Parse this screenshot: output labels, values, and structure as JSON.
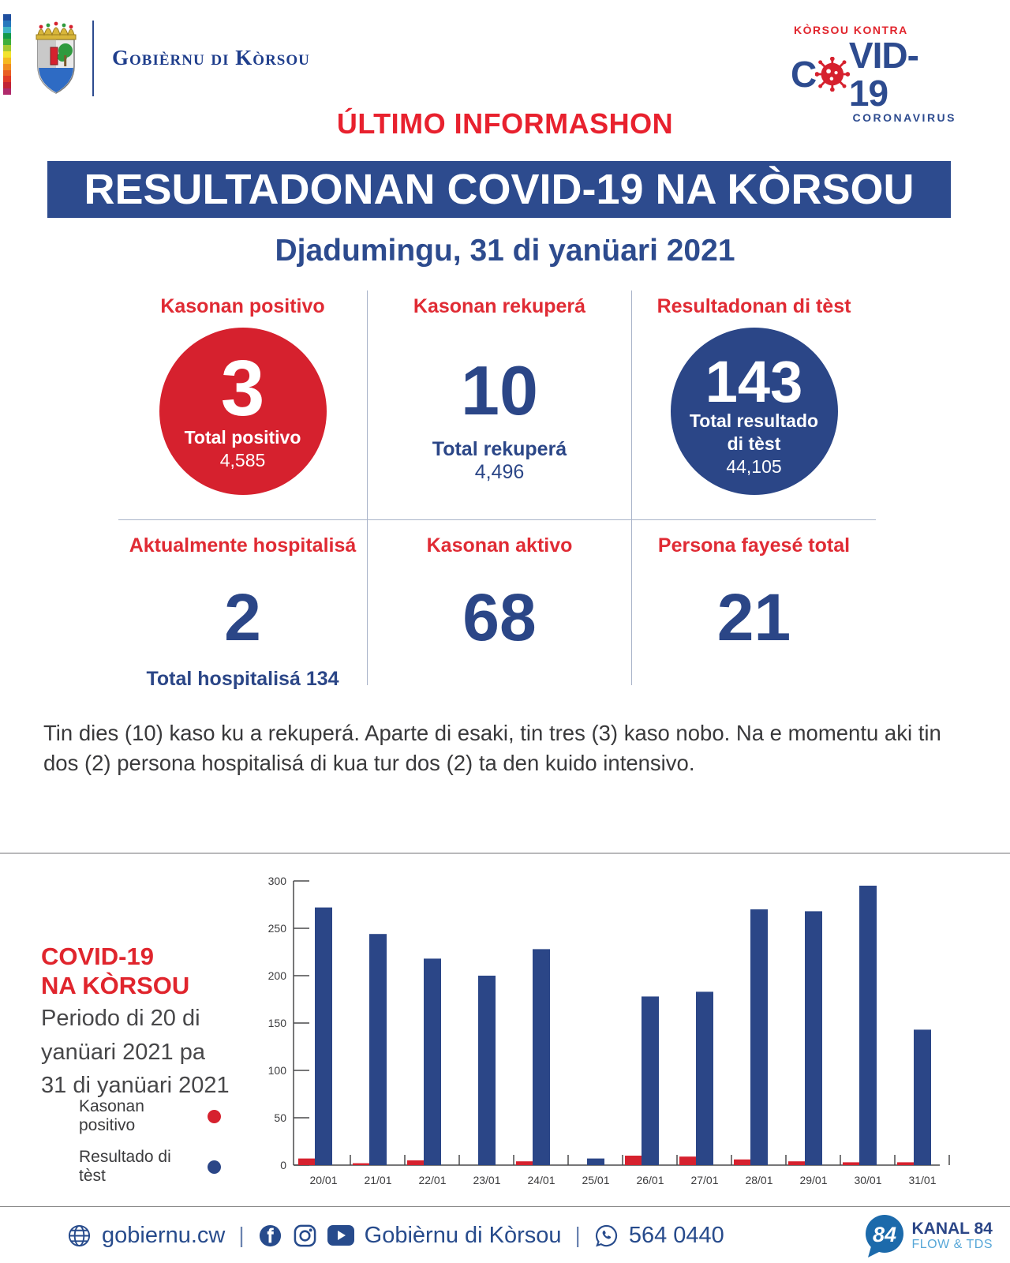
{
  "header": {
    "gov_name": "Gobièrnu di Kòrsou",
    "rainbow_colors": [
      "#1f4f9f",
      "#2779bd",
      "#3fb4c4",
      "#149a49",
      "#3faf3c",
      "#a6c832",
      "#f2e32c",
      "#f5b91f",
      "#f08c1e",
      "#e95e24",
      "#e03a28",
      "#c22336",
      "#b02a6b"
    ],
    "covid_logo": {
      "kicker": "KÒRSOU KONTRA",
      "word_c": "C",
      "word_rest": "VID-19",
      "subtitle": "CORONAVIRUS"
    }
  },
  "titles": {
    "kicker": "ÚLTIMO INFORMASHON",
    "banner": "RESULTADONAN COVID-19 NA KÒRSOU",
    "date": "Djadumingu, 31 di yanüari 2021"
  },
  "stats": {
    "positive": {
      "label": "Kasonan positivo",
      "value": "3",
      "total_label": "Total positivo",
      "total_value": "4,585"
    },
    "recovered": {
      "label": "Kasonan rekuperá",
      "value": "10",
      "total_label": "Total rekuperá",
      "total_value": "4,496"
    },
    "tests": {
      "label": "Resultadonan di tèst",
      "value": "143",
      "total_label_line1": "Total resultado",
      "total_label_line2": "di tèst",
      "total_value": "44,105"
    },
    "hospitalized": {
      "label": "Aktualmente hospitalisá",
      "value": "2",
      "total_label": "Total hospitalisá 134"
    },
    "active": {
      "label": "Kasonan aktivo",
      "value": "68"
    },
    "deceased": {
      "label": "Persona fayesé total",
      "value": "21"
    }
  },
  "summary": "Tin dies (10) kaso ku a rekuperá. Aparte di esaki, tin tres (3) kaso nobo. Na e momentu aki tin dos (2) persona hospitalisá di kua tur dos (2) ta den kuido intensivo.",
  "chart_section": {
    "title_line1": "COVID-19",
    "title_line2": "NA KÒRSOU",
    "period_lines": [
      "Periodo di 20 di",
      "yanüari 2021 pa",
      "31 di yanüari 2021"
    ]
  },
  "chart_data": {
    "type": "bar",
    "categories": [
      "20/01",
      "21/01",
      "22/01",
      "23/01",
      "24/01",
      "25/01",
      "26/01",
      "27/01",
      "28/01",
      "29/01",
      "30/01",
      "31/01"
    ],
    "series": [
      {
        "name": "Kasonan positivo",
        "color": "#d6212e",
        "values": [
          7,
          2,
          5,
          0,
          4,
          0,
          10,
          9,
          6,
          4,
          3,
          3
        ]
      },
      {
        "name": "Resultado di tèst",
        "color": "#2b4687",
        "values": [
          272,
          244,
          218,
          200,
          228,
          7,
          178,
          183,
          270,
          268,
          295,
          143
        ]
      }
    ],
    "title": "COVID-19 NA KÒRSOU — Periodo di 20 di yanüari 2021 pa 31 di yanüari 2021",
    "xlabel": "",
    "ylabel": "",
    "ylim": [
      0,
      300
    ],
    "yticks": [
      0,
      50,
      100,
      150,
      200,
      250,
      300
    ],
    "grid": false,
    "legend_position": "left"
  },
  "footer": {
    "website": "gobiernu.cw",
    "social_name": "Gobièrnu di Kòrsou",
    "phone": "564 0440",
    "kanal": {
      "number": "84",
      "name": "KANAL 84",
      "tagline": "FLOW & TDS"
    }
  },
  "colors": {
    "accent_red": "#d6212e",
    "label_red": "#e02b34",
    "navy": "#2b4687",
    "banner_blue": "#2d4b8e",
    "kanal_blue": "#1c6aab"
  }
}
